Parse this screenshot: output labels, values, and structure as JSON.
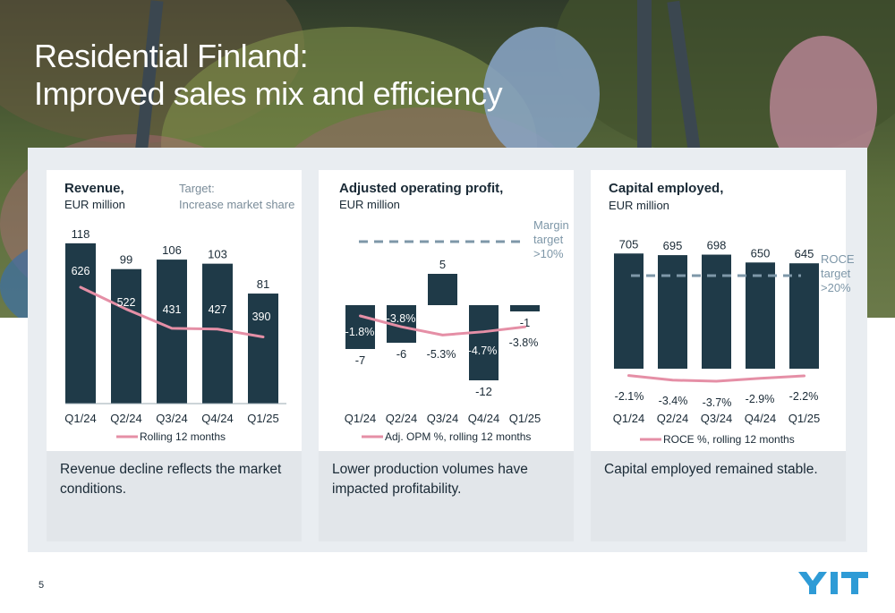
{
  "slide": {
    "title_line1": "Residential Finland:",
    "title_line2": "Improved sales mix and efficiency",
    "page_number": "5",
    "logo_text": "YIT",
    "colors": {
      "bar": "#1f3a48",
      "line": "#e58fa6",
      "target": "#7e97a8",
      "text": "#1a2a36",
      "accent_blue": "#2e9bd6"
    }
  },
  "chart_data": [
    {
      "type": "bar",
      "title": "Revenue,",
      "subtitle": "EUR million",
      "note": "Target:\nIncrease market share",
      "note_line1": "Target:",
      "note_line2": "Increase market share",
      "categories": [
        "Q1/24",
        "Q2/24",
        "Q3/24",
        "Q4/24",
        "Q1/25"
      ],
      "series": [
        {
          "values": [
            118,
            99,
            106,
            103,
            81
          ]
        },
        {
          "name": "Rolling 12 months",
          "type": "line",
          "values": [
            626,
            522,
            431,
            427,
            390
          ]
        }
      ],
      "bar_labels": [
        "118",
        "99",
        "106",
        "103",
        "81"
      ],
      "line_labels": [
        "626",
        "522",
        "431",
        "427",
        "390"
      ],
      "legend": "Rolling 12 months",
      "footer": "Revenue decline reflects the market conditions."
    },
    {
      "type": "bar",
      "title": "Adjusted operating profit,",
      "subtitle": "EUR million",
      "categories": [
        "Q1/24",
        "Q2/24",
        "Q3/24",
        "Q4/24",
        "Q1/25"
      ],
      "series": [
        {
          "values": [
            -7,
            -6,
            5,
            -12,
            -1
          ]
        },
        {
          "name": "Adj. OPM %, rolling 12 months",
          "type": "line",
          "values": [
            -1.8,
            -3.8,
            -5.3,
            -4.7,
            -3.8
          ]
        }
      ],
      "bar_labels": [
        "-7",
        "-6",
        "5",
        "-12",
        "-1"
      ],
      "line_labels": [
        "-1.8%",
        "-3.8%",
        "-5.3%",
        "-4.7%",
        "-3.8%"
      ],
      "target_label_line1": "Margin",
      "target_label_line2": "target",
      "target_label_line3": ">10%",
      "target_value_pct": 10,
      "legend": "Adj. OPM %, rolling 12 months",
      "footer": "Lower production volumes have impacted profitability."
    },
    {
      "type": "bar",
      "title": "Capital employed,",
      "subtitle": "EUR million",
      "categories": [
        "Q1/24",
        "Q2/24",
        "Q3/24",
        "Q4/24",
        "Q1/25"
      ],
      "series": [
        {
          "values": [
            705,
            695,
            698,
            650,
            645
          ]
        },
        {
          "name": "ROCE %, rolling 12 months",
          "type": "line",
          "values": [
            -2.1,
            -3.4,
            -3.7,
            -2.9,
            -2.2
          ]
        }
      ],
      "bar_labels": [
        "705",
        "695",
        "698",
        "650",
        "645"
      ],
      "line_labels": [
        "-2.1%",
        "-3.4%",
        "-3.7%",
        "-2.9%",
        "-2.2%"
      ],
      "target_label_line1": "ROCE",
      "target_label_line2": "target",
      "target_label_line3": ">20%",
      "target_value_pct": 20,
      "legend": "ROCE %, rolling 12 months",
      "footer": "Capital employed remained stable."
    }
  ]
}
